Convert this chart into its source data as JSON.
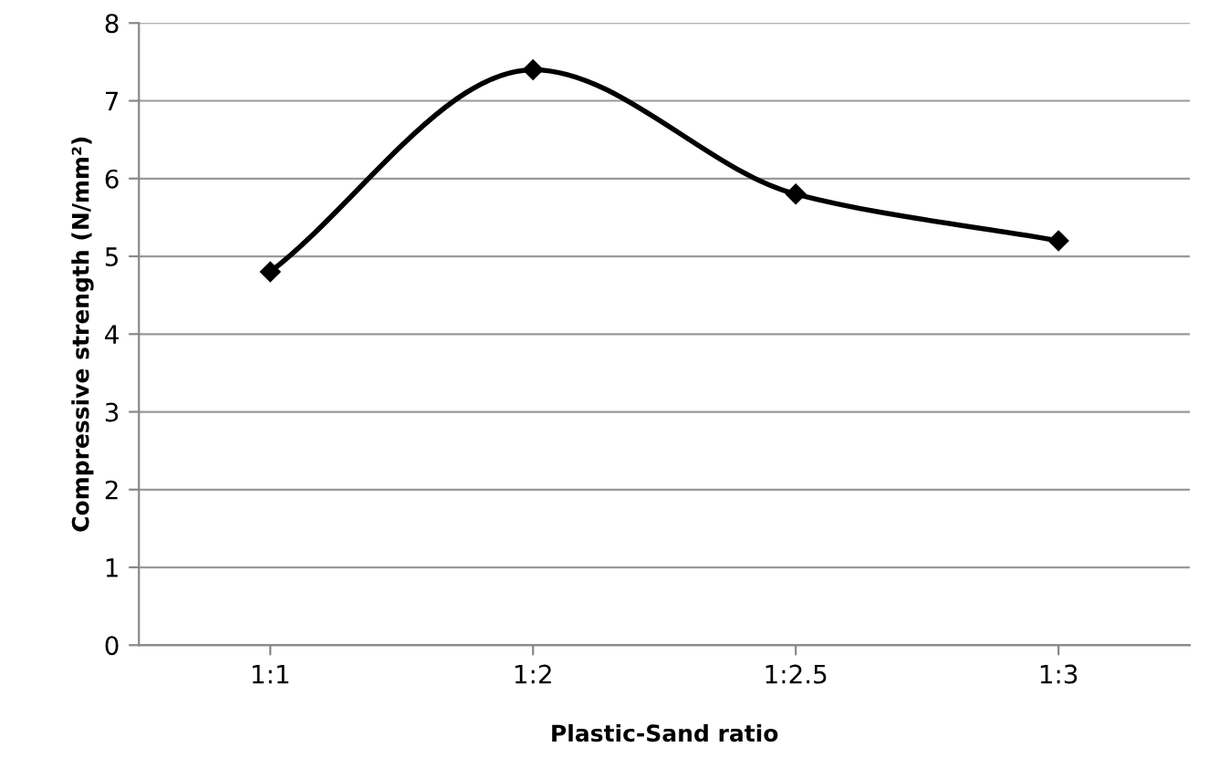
{
  "chart_data": {
    "type": "line",
    "xlabel": "Plastic-Sand ratio",
    "ylabel": "Compressive strength (N/mm²)",
    "categories": [
      "1:1",
      "1:2",
      "1:2.5",
      "1:3"
    ],
    "series": [
      {
        "color": "#000000",
        "values": [
          4.8,
          7.4,
          5.8,
          5.2
        ]
      }
    ],
    "ylim": [
      0,
      8
    ],
    "yticks": [
      0,
      1,
      2,
      3,
      4,
      5,
      6,
      7,
      8
    ],
    "grid": "y",
    "marker": "diamond",
    "line_style": "solid"
  }
}
